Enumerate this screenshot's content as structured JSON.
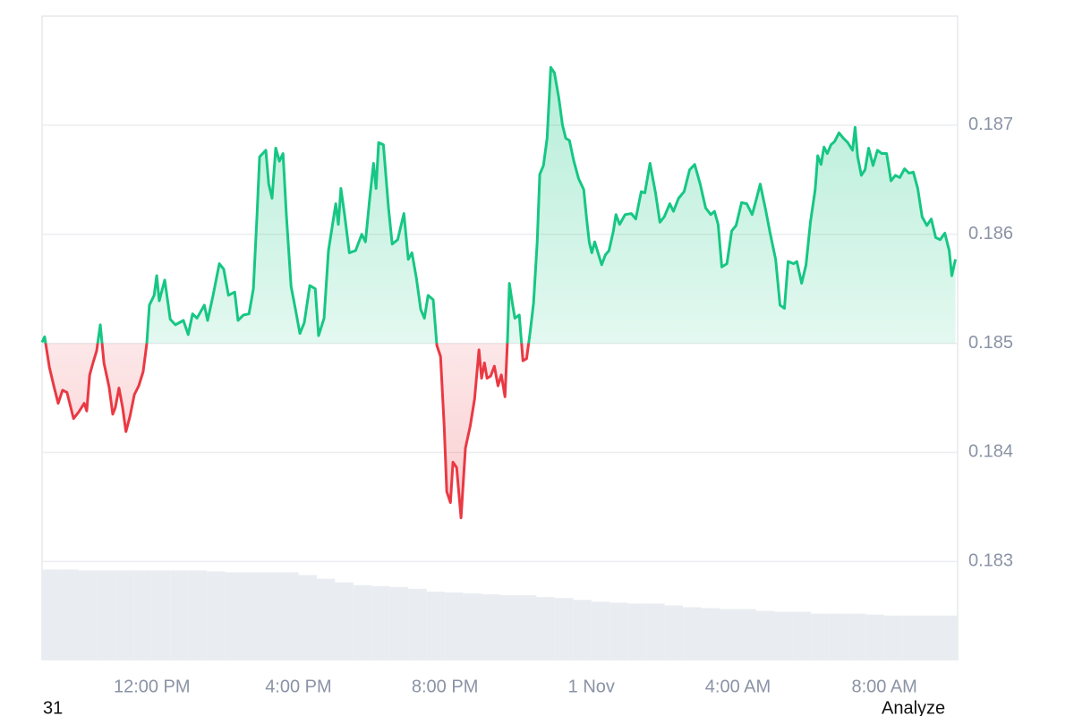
{
  "chart_data": {
    "type": "line",
    "color_up": "#16c784",
    "color_down": "#ea3943",
    "baseline": 0.185,
    "grid": true,
    "xlim": [
      9,
      34
    ],
    "ylim": [
      0.1821,
      0.188
    ],
    "yticks": [
      0.183,
      0.184,
      0.185,
      0.186,
      0.187
    ],
    "xticks": [
      {
        "value": 12,
        "label": "12:00 PM"
      },
      {
        "value": 16,
        "label": "4:00 PM"
      },
      {
        "value": 20,
        "label": "8:00 PM"
      },
      {
        "value": 24,
        "label": "1 Nov"
      },
      {
        "value": 28,
        "label": "4:00 AM"
      },
      {
        "value": 32,
        "label": "8:00 AM"
      }
    ],
    "x": [
      9.0,
      9.07,
      9.2,
      9.32,
      9.44,
      9.56,
      9.68,
      9.86,
      10.0,
      10.15,
      10.22,
      10.3,
      10.39,
      10.49,
      10.59,
      10.69,
      10.83,
      10.93,
      11.0,
      11.1,
      11.2,
      11.29,
      11.4,
      11.52,
      11.64,
      11.76,
      11.86,
      11.93,
      12.06,
      12.13,
      12.2,
      12.35,
      12.5,
      12.64,
      12.86,
      12.99,
      13.11,
      13.23,
      13.43,
      13.52,
      13.67,
      13.84,
      13.96,
      14.09,
      14.26,
      14.35,
      14.5,
      14.65,
      14.77,
      14.87,
      14.94,
      15.11,
      15.19,
      15.28,
      15.38,
      15.48,
      15.58,
      15.67,
      15.8,
      15.92,
      16.04,
      16.16,
      16.31,
      16.46,
      16.55,
      16.7,
      16.82,
      17.02,
      17.09,
      17.16,
      17.26,
      17.39,
      17.56,
      17.73,
      17.83,
      17.95,
      18.05,
      18.12,
      18.19,
      18.32,
      18.46,
      18.56,
      18.71,
      18.88,
      19.0,
      19.1,
      19.22,
      19.34,
      19.44,
      19.54,
      19.68,
      19.78,
      19.88,
      19.98,
      20.05,
      20.15,
      20.22,
      20.32,
      20.44,
      20.56,
      20.69,
      20.81,
      20.93,
      21.0,
      21.08,
      21.15,
      21.25,
      21.35,
      21.45,
      21.54,
      21.64,
      21.71,
      21.76,
      21.84,
      21.91,
      22.03,
      22.13,
      22.23,
      22.33,
      22.42,
      22.52,
      22.59,
      22.69,
      22.79,
      22.89,
      22.99,
      23.11,
      23.21,
      23.3,
      23.4,
      23.52,
      23.65,
      23.79,
      23.87,
      23.94,
      24.01,
      24.09,
      24.18,
      24.28,
      24.38,
      24.48,
      24.6,
      24.67,
      24.77,
      24.92,
      25.09,
      25.21,
      25.36,
      25.46,
      25.6,
      25.75,
      25.87,
      25.99,
      26.14,
      26.24,
      26.38,
      26.53,
      26.68,
      26.82,
      26.97,
      27.12,
      27.26,
      27.36,
      27.46,
      27.56,
      27.7,
      27.83,
      27.95,
      28.1,
      28.24,
      28.39,
      28.51,
      28.61,
      28.76,
      28.88,
      29.03,
      29.15,
      29.27,
      29.37,
      29.52,
      29.61,
      29.74,
      29.86,
      29.98,
      30.11,
      30.18,
      30.27,
      30.35,
      30.44,
      30.54,
      30.64,
      30.76,
      30.88,
      31.0,
      31.13,
      31.2,
      31.27,
      31.37,
      31.47,
      31.57,
      31.69,
      31.81,
      31.93,
      32.06,
      32.18,
      32.3,
      32.42,
      32.55,
      32.67,
      32.79,
      32.91,
      33.03,
      33.16,
      33.28,
      33.4,
      33.52,
      33.65,
      33.77,
      33.84,
      33.94
    ],
    "values": [
      0.18501,
      0.18506,
      0.18478,
      0.18461,
      0.18445,
      0.18457,
      0.18455,
      0.18431,
      0.18437,
      0.18445,
      0.18438,
      0.18471,
      0.18482,
      0.18493,
      0.18517,
      0.18482,
      0.1846,
      0.18435,
      0.18441,
      0.18459,
      0.18441,
      0.18419,
      0.18433,
      0.18453,
      0.18461,
      0.18474,
      0.185,
      0.18535,
      0.18544,
      0.18562,
      0.18539,
      0.18558,
      0.18522,
      0.18517,
      0.18521,
      0.18508,
      0.18527,
      0.18523,
      0.18535,
      0.18521,
      0.18544,
      0.18573,
      0.18568,
      0.18544,
      0.18547,
      0.18521,
      0.18526,
      0.18527,
      0.1855,
      0.18618,
      0.18671,
      0.18677,
      0.18646,
      0.18633,
      0.18679,
      0.18667,
      0.18674,
      0.18618,
      0.18552,
      0.18531,
      0.18509,
      0.18519,
      0.18553,
      0.1855,
      0.18507,
      0.18523,
      0.18585,
      0.18628,
      0.18609,
      0.18642,
      0.18618,
      0.18583,
      0.18585,
      0.186,
      0.18593,
      0.18634,
      0.18665,
      0.18642,
      0.18684,
      0.18682,
      0.18624,
      0.18591,
      0.18595,
      0.18619,
      0.18577,
      0.18583,
      0.1856,
      0.18531,
      0.18523,
      0.18544,
      0.1854,
      0.18498,
      0.18488,
      0.18424,
      0.18364,
      0.18354,
      0.18391,
      0.18386,
      0.1834,
      0.18404,
      0.18424,
      0.18449,
      0.18494,
      0.18468,
      0.18482,
      0.18468,
      0.1847,
      0.18479,
      0.18461,
      0.18471,
      0.18451,
      0.18504,
      0.18555,
      0.18537,
      0.18523,
      0.18526,
      0.18484,
      0.18486,
      0.18511,
      0.18537,
      0.18593,
      0.18655,
      0.18663,
      0.18688,
      0.18753,
      0.18748,
      0.18725,
      0.187,
      0.18688,
      0.18686,
      0.18667,
      0.18651,
      0.18641,
      0.18614,
      0.18593,
      0.18583,
      0.18593,
      0.18583,
      0.18572,
      0.18581,
      0.18585,
      0.18603,
      0.18618,
      0.18609,
      0.18618,
      0.18619,
      0.18614,
      0.18639,
      0.18638,
      0.18665,
      0.18638,
      0.18611,
      0.18616,
      0.18628,
      0.18621,
      0.18633,
      0.18639,
      0.18659,
      0.18664,
      0.18646,
      0.18624,
      0.18618,
      0.18621,
      0.18609,
      0.1857,
      0.18573,
      0.18603,
      0.18608,
      0.18629,
      0.18628,
      0.18618,
      0.18633,
      0.18646,
      0.18622,
      0.18601,
      0.18577,
      0.18535,
      0.18532,
      0.18575,
      0.18573,
      0.18575,
      0.18555,
      0.18572,
      0.18611,
      0.18641,
      0.18672,
      0.18664,
      0.1868,
      0.18674,
      0.18682,
      0.18685,
      0.18693,
      0.18688,
      0.18684,
      0.18677,
      0.18698,
      0.18671,
      0.18654,
      0.18659,
      0.18679,
      0.18663,
      0.18677,
      0.18674,
      0.18674,
      0.18649,
      0.18654,
      0.18652,
      0.1866,
      0.18656,
      0.18657,
      0.18642,
      0.18616,
      0.18608,
      0.18614,
      0.18597,
      0.18595,
      0.18601,
      0.18585,
      0.18562,
      0.18577
    ],
    "volume": {
      "axis": "y2",
      "color": "#e9edf1",
      "x": [
        9,
        9.5,
        10,
        10.5,
        11,
        11.5,
        12,
        12.5,
        13,
        13.5,
        14,
        14.5,
        15,
        15.5,
        16,
        16.5,
        17,
        17.5,
        18,
        18.5,
        19,
        19.5,
        20,
        20.5,
        21,
        21.5,
        22,
        22.5,
        23,
        23.5,
        24,
        24.5,
        25,
        25.5,
        26,
        26.5,
        27,
        27.5,
        28,
        28.5,
        29,
        29.5,
        30,
        30.5,
        31,
        31.5,
        32,
        32.5,
        33,
        33.5
      ],
      "values": [
        98,
        98,
        97,
        97,
        97,
        97,
        97,
        97,
        97,
        96,
        95,
        95,
        95,
        95,
        92,
        88,
        84,
        81,
        80,
        79,
        77,
        74,
        73,
        72,
        71,
        70,
        70,
        68,
        67,
        65,
        63,
        62,
        61,
        61,
        59,
        57,
        56,
        55,
        55,
        53,
        52,
        52,
        50,
        50,
        50,
        49,
        48,
        48,
        48,
        48
      ]
    },
    "y2lim": [
      0,
      700
    ]
  },
  "footer": {
    "left": "31",
    "right": "Analyze"
  }
}
